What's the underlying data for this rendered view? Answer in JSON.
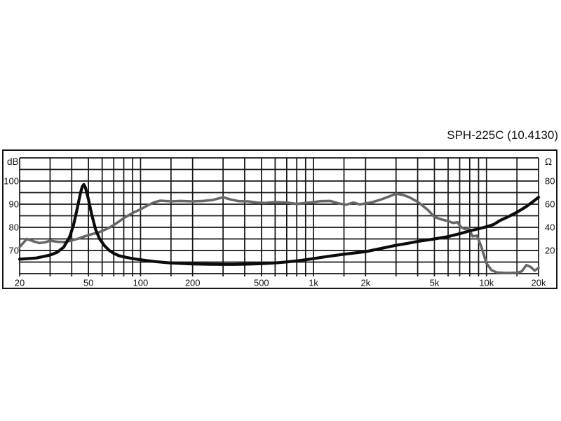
{
  "title": "SPH-225C (10.4130)",
  "colors": {
    "background": "#ffffff",
    "grid": "#161616",
    "frame": "#161616",
    "text": "#111111",
    "spl_curve": "#676767",
    "impedance_curve": "#0b0b0b"
  },
  "chart_data": {
    "type": "line",
    "title": "SPH-225C (10.4130)",
    "x_axis": {
      "scale": "log",
      "unit": "Hz",
      "min": 20,
      "max": 20000,
      "gridlines": [
        20,
        30,
        40,
        50,
        60,
        70,
        80,
        90,
        100,
        150,
        200,
        300,
        400,
        500,
        600,
        700,
        800,
        900,
        1000,
        1500,
        2000,
        3000,
        4000,
        5000,
        6000,
        7000,
        8000,
        9000,
        10000,
        15000,
        20000
      ],
      "labeled_ticks": [
        {
          "value": 20,
          "label": "20"
        },
        {
          "value": 50,
          "label": "50"
        },
        {
          "value": 100,
          "label": "100"
        },
        {
          "value": 200,
          "label": "200"
        },
        {
          "value": 500,
          "label": "500"
        },
        {
          "value": 1000,
          "label": "1k"
        },
        {
          "value": 2000,
          "label": "2k"
        },
        {
          "value": 5000,
          "label": "5k"
        },
        {
          "value": 10000,
          "label": "10k"
        },
        {
          "value": 20000,
          "label": "20k"
        }
      ]
    },
    "left_axis": {
      "label": "dB",
      "min": 60,
      "max": 110,
      "grid_step": 5,
      "labeled_ticks": [
        {
          "value": 100,
          "label": "100"
        },
        {
          "value": 90,
          "label": "90"
        },
        {
          "value": 80,
          "label": "80"
        },
        {
          "value": 70,
          "label": "70"
        }
      ]
    },
    "right_axis": {
      "label": "Ω",
      "min": 0,
      "max": 100,
      "grid_step": 10,
      "labeled_ticks": [
        {
          "value": 80,
          "label": "80"
        },
        {
          "value": 60,
          "label": "60"
        },
        {
          "value": 40,
          "label": "40"
        },
        {
          "value": 20,
          "label": "20"
        }
      ]
    },
    "series": [
      {
        "name": "sound-pressure-level",
        "axis": "left",
        "unit": "dB",
        "color": "#676767",
        "stroke_width": 3.6,
        "points": [
          [
            20,
            71.5
          ],
          [
            22,
            75
          ],
          [
            24,
            74
          ],
          [
            26,
            73.2
          ],
          [
            28,
            73.5
          ],
          [
            30,
            74.2
          ],
          [
            33,
            73.8
          ],
          [
            36,
            73.6
          ],
          [
            40,
            74.3
          ],
          [
            44,
            75.2
          ],
          [
            48,
            76.2
          ],
          [
            52,
            77
          ],
          [
            56,
            77.6
          ],
          [
            60,
            78.4
          ],
          [
            65,
            79.6
          ],
          [
            70,
            81
          ],
          [
            75,
            82.5
          ],
          [
            80,
            84
          ],
          [
            90,
            86.2
          ],
          [
            100,
            87.8
          ],
          [
            110,
            89.5
          ],
          [
            120,
            90.8
          ],
          [
            130,
            91.5
          ],
          [
            150,
            91.2
          ],
          [
            170,
            91.4
          ],
          [
            200,
            91.2
          ],
          [
            230,
            91.4
          ],
          [
            260,
            91.8
          ],
          [
            300,
            93
          ],
          [
            330,
            92.1
          ],
          [
            370,
            91.3
          ],
          [
            420,
            91.2
          ],
          [
            470,
            90.7
          ],
          [
            520,
            90.5
          ],
          [
            600,
            90.9
          ],
          [
            700,
            90.7
          ],
          [
            800,
            90.1
          ],
          [
            900,
            90.5
          ],
          [
            1000,
            90.9
          ],
          [
            1100,
            91.3
          ],
          [
            1250,
            91.4
          ],
          [
            1400,
            90.3
          ],
          [
            1550,
            89.8
          ],
          [
            1700,
            90.7
          ],
          [
            1850,
            89.9
          ],
          [
            2000,
            90.3
          ],
          [
            2200,
            90.9
          ],
          [
            2500,
            92.2
          ],
          [
            2800,
            93.6
          ],
          [
            3000,
            94.5
          ],
          [
            3300,
            94
          ],
          [
            3600,
            92.9
          ],
          [
            4000,
            91
          ],
          [
            4300,
            89.2
          ],
          [
            4600,
            87.4
          ],
          [
            5000,
            84.5
          ],
          [
            5500,
            83.4
          ],
          [
            6000,
            82.7
          ],
          [
            6400,
            81.9
          ],
          [
            6800,
            82.2
          ],
          [
            7100,
            80.2
          ],
          [
            7500,
            79.2
          ],
          [
            7900,
            79.8
          ],
          [
            8300,
            76.1
          ],
          [
            8800,
            76.4
          ],
          [
            9300,
            72
          ],
          [
            10000,
            64.5
          ],
          [
            10700,
            61.5
          ],
          [
            11500,
            60.5
          ],
          [
            13000,
            60.3
          ],
          [
            15000,
            60.4
          ],
          [
            16000,
            61
          ],
          [
            17000,
            63.7
          ],
          [
            18000,
            62.9
          ],
          [
            19000,
            61.3
          ],
          [
            20000,
            62.5
          ]
        ]
      },
      {
        "name": "impedance",
        "axis": "right",
        "unit": "Ω",
        "color": "#0b0b0b",
        "stroke_width": 4.2,
        "points": [
          [
            20,
            12.5
          ],
          [
            25,
            13.5
          ],
          [
            30,
            16
          ],
          [
            33,
            18.5
          ],
          [
            36,
            23
          ],
          [
            39,
            32
          ],
          [
            41,
            42
          ],
          [
            43,
            56
          ],
          [
            45,
            70
          ],
          [
            46,
            75
          ],
          [
            47,
            77
          ],
          [
            48,
            74.5
          ],
          [
            50,
            64
          ],
          [
            52,
            52
          ],
          [
            55,
            38
          ],
          [
            58,
            30
          ],
          [
            62,
            24
          ],
          [
            66,
            20
          ],
          [
            70,
            17.5
          ],
          [
            75,
            15.5
          ],
          [
            80,
            14.5
          ],
          [
            90,
            13
          ],
          [
            100,
            12
          ],
          [
            120,
            10.5
          ],
          [
            150,
            9.2
          ],
          [
            200,
            8.4
          ],
          [
            250,
            8.1
          ],
          [
            300,
            8
          ],
          [
            350,
            8
          ],
          [
            400,
            8.2
          ],
          [
            500,
            8.6
          ],
          [
            600,
            9.3
          ],
          [
            700,
            10.1
          ],
          [
            800,
            11
          ],
          [
            900,
            12
          ],
          [
            1000,
            13
          ],
          [
            1200,
            14.8
          ],
          [
            1500,
            16.8
          ],
          [
            2000,
            19
          ],
          [
            2500,
            22
          ],
          [
            3000,
            24.5
          ],
          [
            3500,
            26.2
          ],
          [
            4000,
            27.8
          ],
          [
            5000,
            30
          ],
          [
            6000,
            32
          ],
          [
            7000,
            34.5
          ],
          [
            8000,
            37
          ],
          [
            9000,
            38.8
          ],
          [
            10000,
            40.5
          ],
          [
            11000,
            42.5
          ],
          [
            12000,
            46
          ],
          [
            13500,
            49.5
          ],
          [
            15000,
            53
          ],
          [
            17000,
            58
          ],
          [
            18500,
            62
          ],
          [
            20000,
            66
          ]
        ]
      }
    ]
  }
}
